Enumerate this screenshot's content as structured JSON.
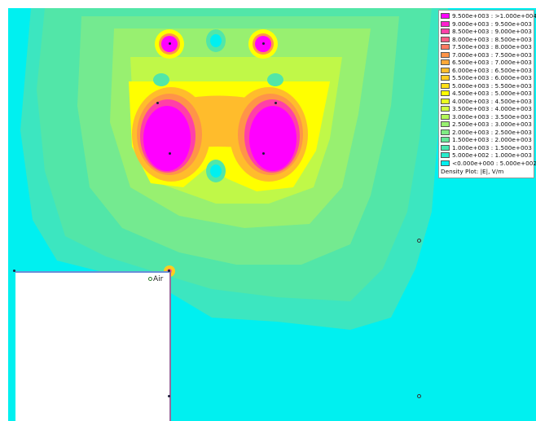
{
  "legend": {
    "rows": [
      {
        "label": "9.500e+003 : >1.000e+004",
        "color": "#ff00ff"
      },
      {
        "label": "9.000e+003 : 9.500e+003",
        "color": "#ff20d0"
      },
      {
        "label": "8.500e+003 : 9.000e+003",
        "color": "#ff40a8"
      },
      {
        "label": "8.000e+003 : 8.500e+003",
        "color": "#ff5c84"
      },
      {
        "label": "7.500e+003 : 8.000e+003",
        "color": "#ff7a60"
      },
      {
        "label": "7.000e+003 : 7.500e+003",
        "color": "#ff9448"
      },
      {
        "label": "6.500e+003 : 7.000e+003",
        "color": "#ffa838"
      },
      {
        "label": "6.000e+003 : 6.500e+003",
        "color": "#ffbc2c"
      },
      {
        "label": "5.500e+003 : 6.000e+003",
        "color": "#ffcc20"
      },
      {
        "label": "5.000e+003 : 5.500e+003",
        "color": "#ffe018"
      },
      {
        "label": "4.500e+003 : 5.000e+003",
        "color": "#ffff00"
      },
      {
        "label": "4.000e+003 : 4.500e+003",
        "color": "#e8ff20"
      },
      {
        "label": "3.500e+003 : 4.000e+003",
        "color": "#d0ff40"
      },
      {
        "label": "3.000e+003 : 3.500e+003",
        "color": "#b4f858"
      },
      {
        "label": "2.500e+003 : 3.000e+003",
        "color": "#98f070"
      },
      {
        "label": "2.000e+003 : 2.500e+003",
        "color": "#80ec84"
      },
      {
        "label": "1.500e+003 : 2.000e+003",
        "color": "#64e898"
      },
      {
        "label": "1.000e+003 : 1.500e+003",
        "color": "#48e6b0"
      },
      {
        "label": "5.000e+002 : 1.000e+003",
        "color": "#28eccc"
      },
      {
        "label": "<0.000e+000 : 5.000e+002",
        "color": "#00f0f0"
      }
    ],
    "title": "Density Plot: |E|, V/m"
  },
  "region_label": "Air",
  "colors": {
    "background": "#00f0f0",
    "field_low": "#3ce6c0",
    "field_mid": "#98f070",
    "field_high": "#ffff00",
    "hot": "#ff00ff"
  }
}
